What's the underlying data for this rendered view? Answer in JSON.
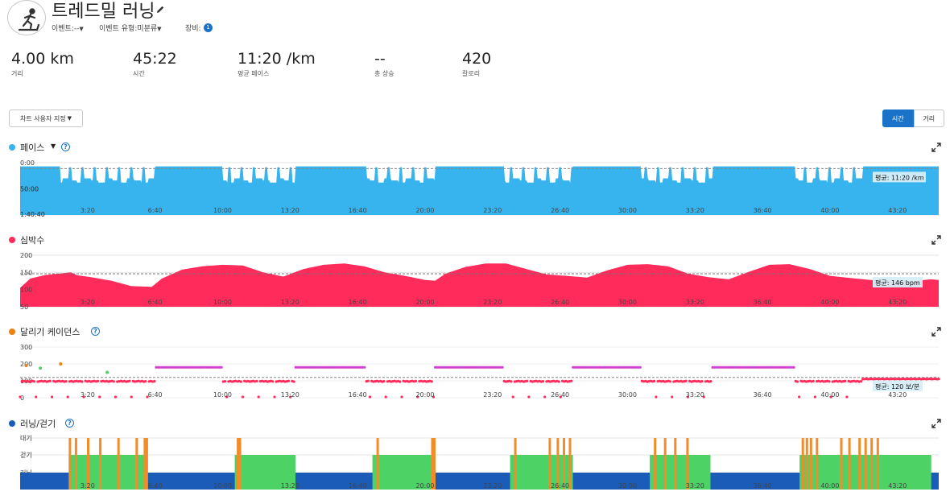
{
  "header": {
    "title": "트레드밀 러닝",
    "event_label": "이벤트:",
    "event_value": "--",
    "event_type_label": "이벤트 유형:",
    "event_type_value": "미분류",
    "gear_label": "장비:",
    "gear_count": "1"
  },
  "stats": [
    {
      "value": "4.00 km",
      "label": "거리"
    },
    {
      "value": "45:22",
      "label": "시간"
    },
    {
      "value": "11:20 /km",
      "label": "평균 페이스"
    },
    {
      "value": "--",
      "label": "총 상승"
    },
    {
      "value": "420",
      "label": "칼로리"
    }
  ],
  "controls": {
    "custom_view": "차트 사용자 지정",
    "toggle_time": "시간",
    "toggle_distance": "거리"
  },
  "colors": {
    "pace": "#37b4ee",
    "heart_rate": "#ff2b5a",
    "cadence": "#f08010",
    "run_walk": "#1a5cb8",
    "walk": "#4dd266",
    "idle": "#f28c28",
    "accent": "#1a73c9"
  },
  "chart_data": [
    {
      "type": "area",
      "title": "페이스",
      "x_ticks": [
        "3:20",
        "6:40",
        "10:00",
        "13:20",
        "16:40",
        "20:00",
        "23:20",
        "26:40",
        "30:00",
        "33:20",
        "36:40",
        "40:00",
        "43:20"
      ],
      "y_ticks": [
        "0:00",
        "50:00",
        "1:40:40"
      ],
      "duration_min": 45.37,
      "average_label": "평균: 11:20 /km",
      "average_min_per_km": 11.33,
      "ylim_min_per_km": [
        0,
        100
      ],
      "run_segments_min": [
        [
          0,
          2
        ],
        [
          6.7,
          10
        ],
        [
          13.6,
          17.1
        ],
        [
          20.5,
          23.9
        ],
        [
          27.3,
          30.7
        ],
        [
          34.2,
          38.3
        ],
        [
          41.6,
          45.37
        ]
      ],
      "run_pace_min_per_km": 7,
      "walk_pace_min_per_km": 30,
      "walk_spike_pace_min_per_km": 9
    },
    {
      "type": "area",
      "title": "심박수",
      "x_ticks": [
        "3:20",
        "6:40",
        "10:00",
        "13:20",
        "16:40",
        "20:00",
        "23:20",
        "26:40",
        "30:00",
        "33:20",
        "36:40",
        "40:00",
        "43:20"
      ],
      "y_ticks": [
        "200",
        "150",
        "100",
        "50"
      ],
      "ylim": [
        50,
        200
      ],
      "average_label": "평균: 146 bpm",
      "average": 146,
      "x_min": [
        0,
        0.5,
        1.2,
        2.5,
        2.8,
        3.5,
        4.5,
        5.5,
        6.5,
        7,
        8,
        9,
        10,
        11,
        12,
        13,
        14,
        15,
        16,
        17,
        18,
        19,
        20,
        20.5,
        21,
        22,
        23,
        24,
        25,
        26,
        27,
        28,
        29,
        30,
        31,
        32,
        33,
        34,
        35,
        36,
        37,
        38,
        39,
        40,
        41,
        42,
        43,
        44,
        45,
        45.37
      ],
      "values": [
        105,
        132,
        142,
        150,
        142,
        136,
        126,
        110,
        108,
        132,
        158,
        168,
        172,
        170,
        150,
        138,
        160,
        172,
        176,
        168,
        150,
        140,
        128,
        126,
        146,
        166,
        176,
        176,
        160,
        144,
        140,
        135,
        156,
        172,
        174,
        168,
        146,
        136,
        130,
        152,
        172,
        174,
        160,
        140,
        134,
        128,
        126,
        124,
        130,
        128
      ]
    },
    {
      "type": "scatter",
      "title": "달리기 케이던스",
      "x_ticks": [
        "3:20",
        "6:40",
        "10:00",
        "13:20",
        "16:40",
        "20:00",
        "23:20",
        "26:40",
        "30:00",
        "33:20",
        "36:40",
        "40:00",
        "43:20"
      ],
      "y_ticks": [
        "300",
        "200",
        "100",
        "0"
      ],
      "ylim": [
        0,
        300
      ],
      "average_label": "평균: 120 보/분",
      "average": 120,
      "run_segments_min": [
        [
          6.7,
          10
        ],
        [
          13.6,
          17.1
        ],
        [
          20.5,
          23.9
        ],
        [
          27.3,
          30.7
        ],
        [
          34.2,
          38.3
        ]
      ],
      "run_cadence": 180,
      "walk_cadence": 95,
      "final_segment_min": [
        41.6,
        45.37
      ],
      "final_segment_cadence": 110
    },
    {
      "type": "bar",
      "title": "러닝/걷기",
      "x_ticks": [
        "3:20",
        "6:40",
        "10:00",
        "13:20",
        "16:40",
        "20:00",
        "23:20",
        "26:40",
        "30:00",
        "33:20",
        "36:40",
        "40:00",
        "43:20"
      ],
      "y_categories": [
        "대기",
        "걷기",
        "러닝"
      ],
      "walk_segments_min": [
        [
          2.4,
          6.3
        ],
        [
          10.6,
          13.6
        ],
        [
          17.4,
          20.5
        ],
        [
          24.2,
          27.3
        ],
        [
          31.1,
          34.1
        ],
        [
          38.5,
          45.0
        ]
      ],
      "idle_marks_min": [
        2.4,
        2.7,
        3.3,
        3.9,
        4.8,
        5.7,
        6.1,
        6.2,
        10.7,
        10.8,
        17.6,
        20.3,
        20.4,
        24.4,
        26.1,
        26.5,
        26.8,
        27.1,
        31.3,
        31.8,
        32.3,
        32.9,
        38.6,
        38.8,
        39.0,
        39.3,
        40.5,
        40.9,
        41.4,
        41.7,
        42.0,
        42.3
      ]
    }
  ]
}
